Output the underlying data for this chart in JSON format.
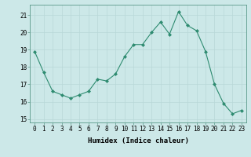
{
  "x": [
    0,
    1,
    2,
    3,
    4,
    5,
    6,
    7,
    8,
    9,
    10,
    11,
    12,
    13,
    14,
    15,
    16,
    17,
    18,
    19,
    20,
    21,
    22,
    23
  ],
  "y": [
    18.9,
    17.7,
    16.6,
    16.4,
    16.2,
    16.4,
    16.6,
    17.3,
    17.2,
    17.6,
    18.6,
    19.3,
    19.3,
    20.0,
    20.6,
    19.9,
    21.2,
    20.4,
    20.1,
    18.9,
    17.0,
    15.9,
    15.3,
    15.5
  ],
  "line_color": "#2e8b70",
  "marker_color": "#2e8b70",
  "bg_color": "#cce8e8",
  "grid_color": "#b8d8d8",
  "xlabel": "Humidex (Indice chaleur)",
  "ylim": [
    14.8,
    21.6
  ],
  "xlim": [
    -0.5,
    23.5
  ],
  "yticks": [
    15,
    16,
    17,
    18,
    19,
    20,
    21
  ],
  "xticks": [
    0,
    1,
    2,
    3,
    4,
    5,
    6,
    7,
    8,
    9,
    10,
    11,
    12,
    13,
    14,
    15,
    16,
    17,
    18,
    19,
    20,
    21,
    22,
    23
  ],
  "label_fontsize": 6.5,
  "tick_fontsize": 5.5
}
